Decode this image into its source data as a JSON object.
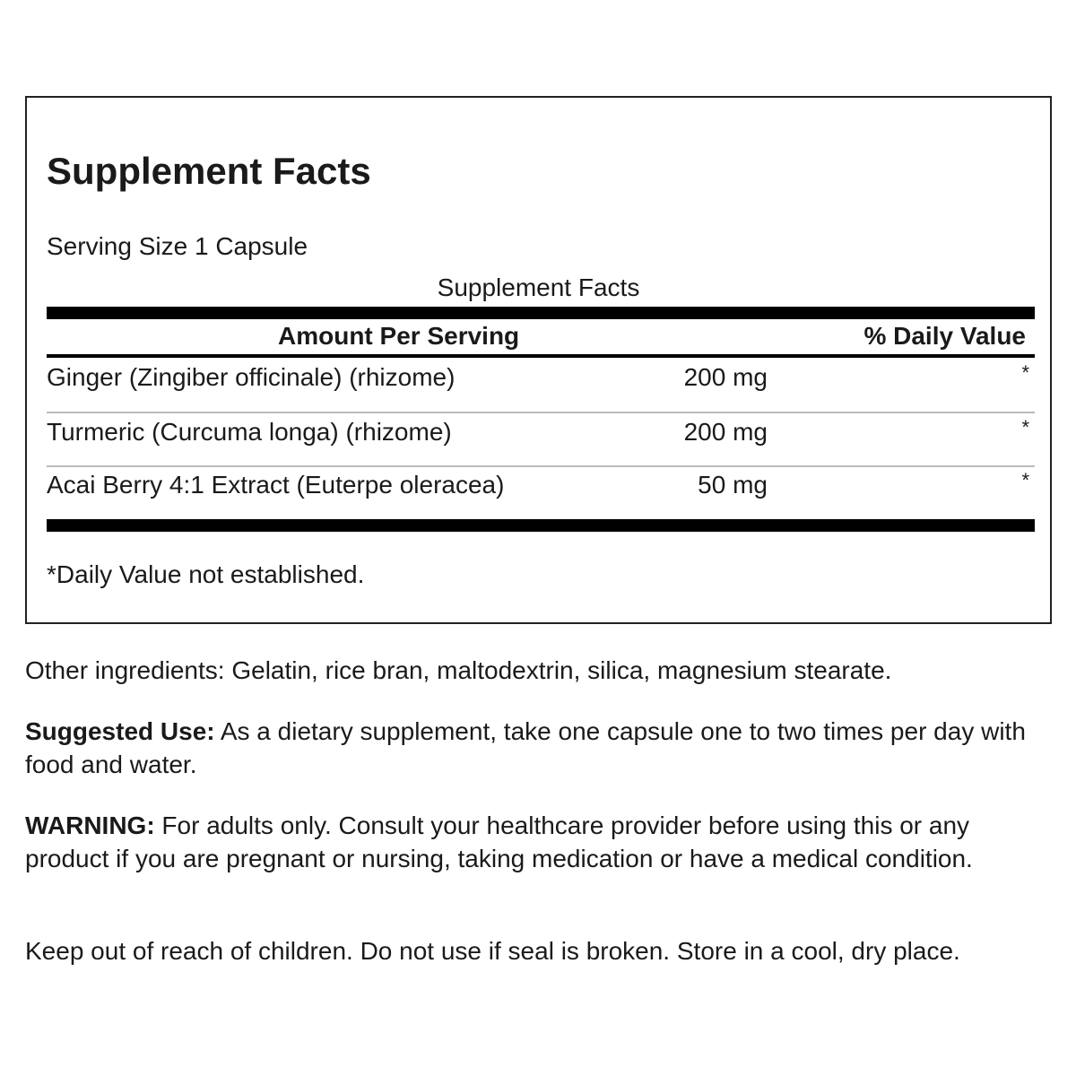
{
  "panel": {
    "title": "Supplement Facts",
    "serving_size": "Serving Size 1 Capsule",
    "caption": "Supplement Facts",
    "header": {
      "amount": "Amount Per Serving",
      "daily_value": "% Daily Value"
    },
    "rows": [
      {
        "name": "Ginger (Zingiber officinale) (rhizome)",
        "amount": "200 mg",
        "dv": "*"
      },
      {
        "name": "Turmeric (Curcuma longa) (rhizome)",
        "amount": "200 mg",
        "dv": "*"
      },
      {
        "name": "Acai Berry 4:1 Extract (Euterpe oleracea)",
        "amount": "50 mg",
        "dv": "*"
      }
    ],
    "footnote": "*Daily Value not established."
  },
  "other_ingredients": "Other ingredients: Gelatin, rice bran, maltodextrin, silica, magnesium stearate.",
  "suggested_use": {
    "label": "Suggested Use:",
    "text": " As a dietary supplement, take one capsule one to two times per day with food and water."
  },
  "warning": {
    "label": "WARNING:",
    "text": " For adults only. Consult your healthcare provider before using this or any product if you are pregnant or nursing, taking medication or have a medical condition."
  },
  "storage": "Keep out of reach of children. Do not use if seal is broken. Store in a cool, dry place."
}
